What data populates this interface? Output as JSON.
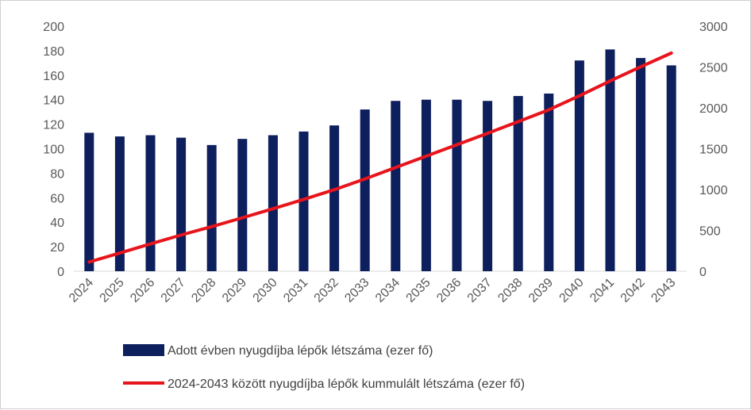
{
  "chart_data": {
    "type": "bar+line",
    "categories": [
      "2024",
      "2025",
      "2026",
      "2027",
      "2028",
      "2029",
      "2030",
      "2031",
      "2032",
      "2033",
      "2034",
      "2035",
      "2036",
      "2037",
      "2038",
      "2039",
      "2040",
      "2041",
      "2042",
      "2043"
    ],
    "series": [
      {
        "name": "Adott évben nyugdíjba lépők létszáma (ezer fő)",
        "type": "bar",
        "axis": "left",
        "color": "#0d1f5c",
        "values": [
          113,
          110,
          111,
          109,
          103,
          108,
          111,
          114,
          119,
          132,
          139,
          140,
          140,
          139,
          143,
          145,
          172,
          181,
          174,
          168
        ]
      },
      {
        "name": "2024-2043 között nyugdíjba lépők kummulált létszáma (ezer fő)",
        "type": "line",
        "axis": "right",
        "color": "#e8141c",
        "values": [
          113,
          223,
          334,
          443,
          546,
          654,
          765,
          879,
          998,
          1130,
          1269,
          1409,
          1549,
          1688,
          1831,
          1976,
          2148,
          2329,
          2503,
          2671
        ]
      }
    ],
    "y_left": {
      "min": 0,
      "max": 200,
      "step": 20
    },
    "y_right": {
      "min": 0,
      "max": 3000,
      "step": 500
    },
    "legend_position": "bottom",
    "grid": false
  }
}
